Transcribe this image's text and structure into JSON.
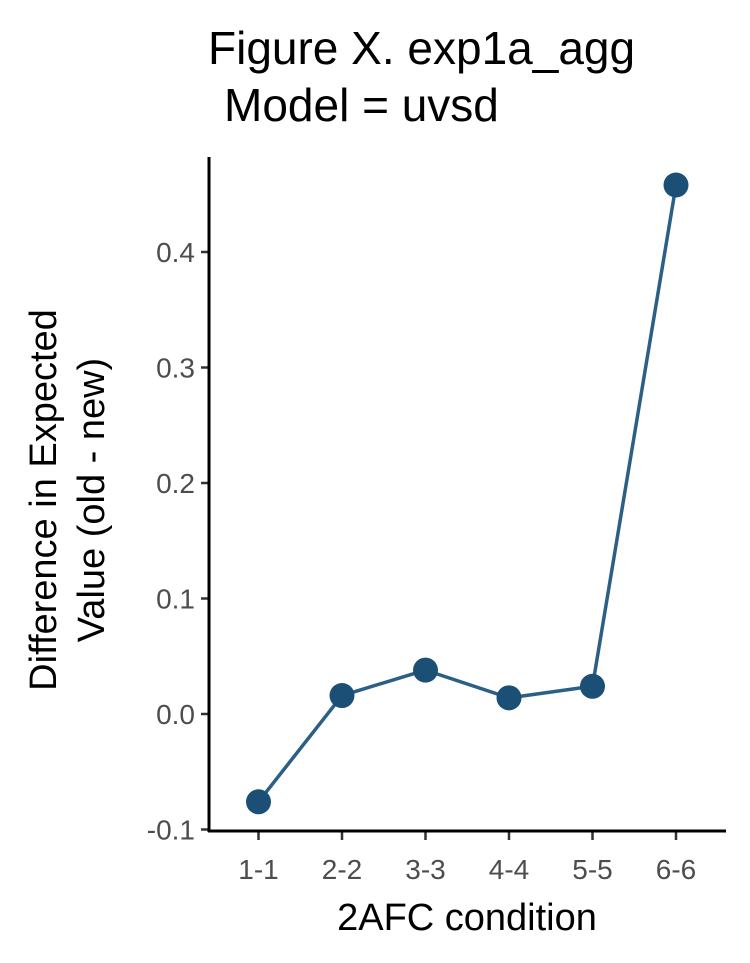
{
  "chart_data": {
    "type": "line",
    "title_lines": [
      "Figure X. exp1a_agg",
      "Model = uvsd"
    ],
    "xlabel": "2AFC condition",
    "ylabel_lines": [
      "Difference in Expected",
      "Value (old - new)"
    ],
    "categories": [
      "1-1",
      "2-2",
      "3-3",
      "4-4",
      "5-5",
      "6-6"
    ],
    "values": [
      -0.076,
      0.016,
      0.038,
      0.014,
      0.024,
      0.458
    ],
    "ylim": [
      -0.1,
      0.5
    ],
    "yticks": [
      -0.1,
      0.0,
      0.1,
      0.2,
      0.3,
      0.4
    ],
    "ytick_labels": [
      "-0.1",
      "0.0",
      "0.1",
      "0.2",
      "0.3",
      "0.4"
    ],
    "grid": false,
    "legend": "none",
    "line_color": "#2b5f86",
    "point_color": "#1b4f75"
  }
}
